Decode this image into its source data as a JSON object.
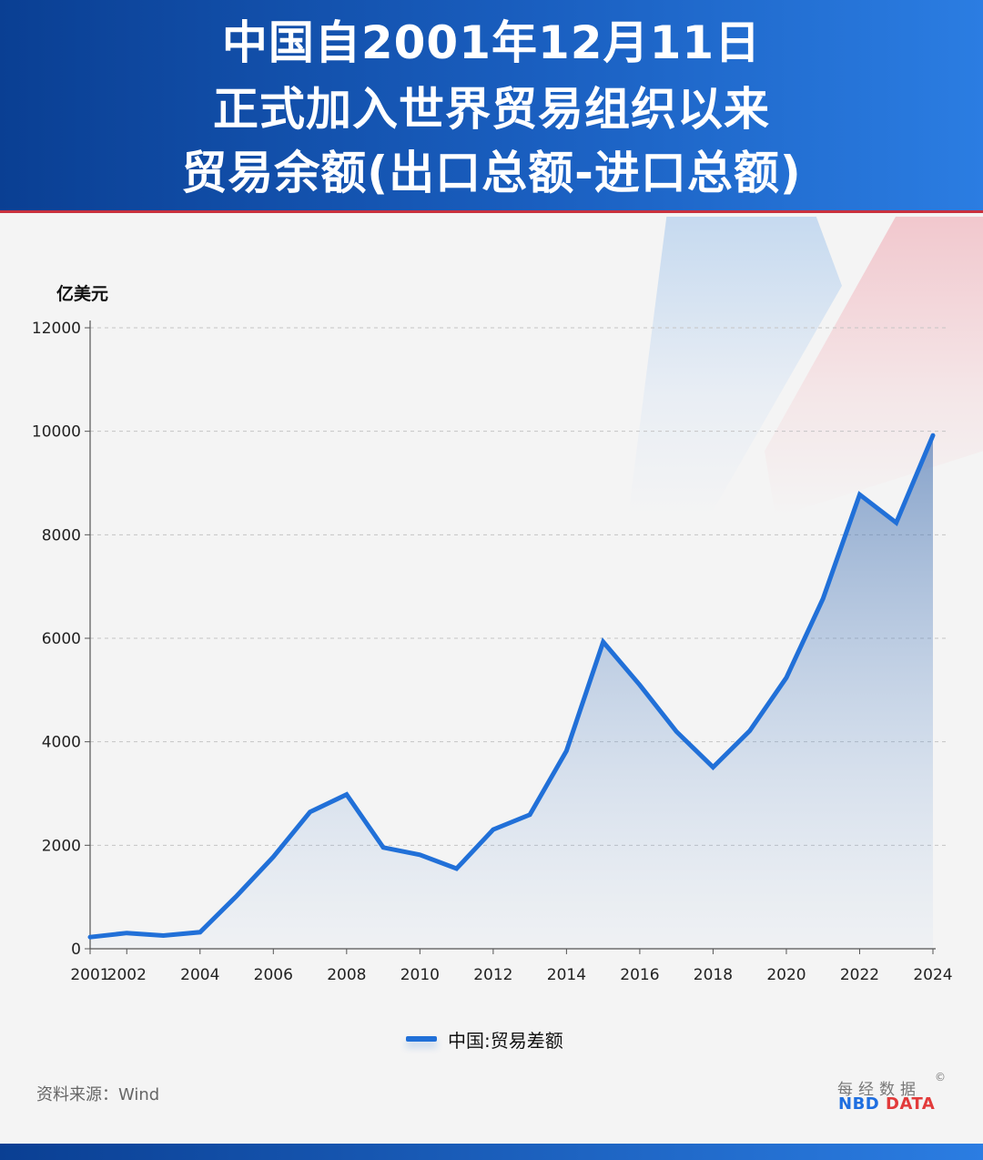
{
  "header": {
    "title_lines": [
      "中国自2001年12月11日",
      "正式加入世界贸易组织以来",
      "贸易余额(出口总额-进口总额)"
    ]
  },
  "footer": {
    "source": "资料来源：Wind",
    "brand_cn": "每经数据",
    "brand_copyright": "©",
    "brand_en_nbd": "NBD",
    "brand_en_data": "DATA"
  },
  "colors": {
    "header_start": "#0a3f93",
    "header_end": "#2b7de2",
    "accent_red": "#c9313e",
    "series_line": "#2170d8"
  },
  "chart_data": {
    "type": "area",
    "ylabel": "亿美元",
    "ylim": [
      0,
      12000
    ],
    "y_ticks": [
      0,
      2000,
      4000,
      6000,
      8000,
      10000,
      12000
    ],
    "x_ticks": [
      2001,
      2002,
      2004,
      2006,
      2008,
      2010,
      2012,
      2014,
      2016,
      2018,
      2020,
      2022,
      2024
    ],
    "xlim": [
      2001,
      2024
    ],
    "grid": "horizontal-dashed",
    "legend_position": "bottom-center",
    "series": [
      {
        "name": "中国:贸易差额",
        "x": [
          2001,
          2002,
          2003,
          2004,
          2005,
          2006,
          2007,
          2008,
          2009,
          2010,
          2011,
          2012,
          2013,
          2014,
          2015,
          2016,
          2017,
          2018,
          2019,
          2020,
          2021,
          2022,
          2023,
          2024
        ],
        "values": [
          226,
          304,
          255,
          321,
          1020,
          1775,
          2643,
          2981,
          1957,
          1815,
          1549,
          2303,
          2590,
          3825,
          5930,
          5097,
          4196,
          3509,
          4211,
          5240,
          6764,
          8776,
          8232,
          9921
        ]
      }
    ]
  }
}
